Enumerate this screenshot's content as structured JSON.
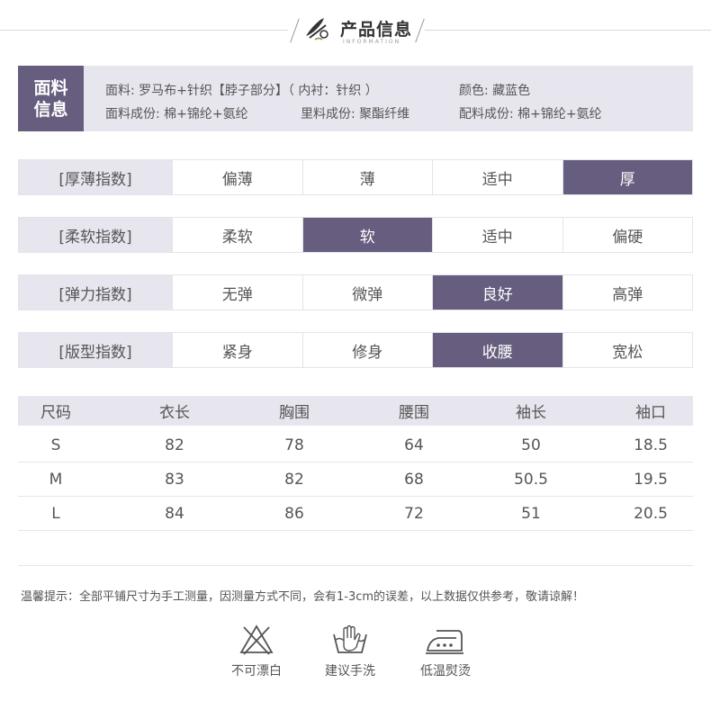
{
  "header": {
    "title": "产品信息",
    "subtitle": "INFORMATION"
  },
  "fabric": {
    "tag_line1": "面料",
    "tag_line2": "信息",
    "material": "面料: 罗马布+针织【脖子部分】（ 内衬：针织 ）",
    "color": "颜色: 藏蓝色",
    "composition": "面料成份: 棉+锦纶+氨纶",
    "lining": "里料成份: 聚酯纤维",
    "accessory": "配料成份: 棉+锦纶+氨纶"
  },
  "indices": [
    {
      "label": "[厚薄指数]",
      "options": [
        "偏薄",
        "薄",
        "适中",
        "厚"
      ],
      "selected": 3
    },
    {
      "label": "[柔软指数]",
      "options": [
        "柔软",
        "软",
        "适中",
        "偏硬"
      ],
      "selected": 1
    },
    {
      "label": "[弹力指数]",
      "options": [
        "无弹",
        "微弹",
        "良好",
        "高弹"
      ],
      "selected": 2
    },
    {
      "label": "[版型指数]",
      "options": [
        "紧身",
        "修身",
        "收腰",
        "宽松"
      ],
      "selected": 2
    }
  ],
  "size_table": {
    "headers": [
      "尺码",
      "衣长",
      "胸围",
      "腰围",
      "袖长",
      "袖口"
    ],
    "rows": [
      [
        "S",
        "82",
        "78",
        "64",
        "50",
        "18.5"
      ],
      [
        "M",
        "83",
        "82",
        "68",
        "50.5",
        "19.5"
      ],
      [
        "L",
        "84",
        "86",
        "72",
        "51",
        "20.5"
      ]
    ]
  },
  "notice": "温馨提示：全部平铺尺寸为手工测量，因测量方式不同，会有1-3cm的误差，以上数据仅供参考，敬请谅解！",
  "care": [
    {
      "icon": "no-bleach-icon",
      "label": "不可漂白"
    },
    {
      "icon": "hand-wash-icon",
      "label": "建议手洗"
    },
    {
      "icon": "low-iron-icon",
      "label": "低温熨烫"
    }
  ],
  "colors": {
    "accent": "#675d7e",
    "light": "#e7e6ef"
  }
}
